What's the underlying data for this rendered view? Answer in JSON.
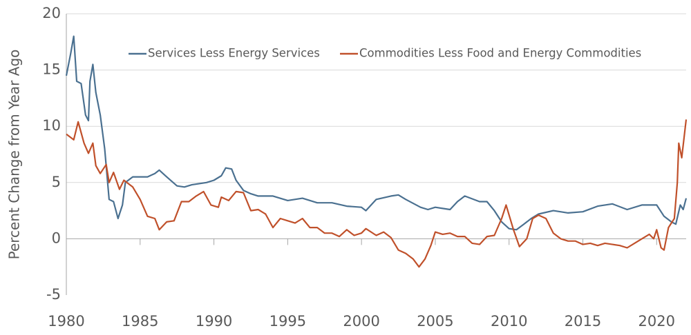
{
  "chart_data": {
    "type": "line",
    "y_label": "Percent Change from Year Ago",
    "xlim": [
      1980,
      2022
    ],
    "ylim": [
      -5,
      20
    ],
    "xticks": [
      1980,
      1985,
      1990,
      1995,
      2000,
      2005,
      2010,
      2015,
      2020
    ],
    "yticks": [
      -5,
      0,
      5,
      10,
      15,
      20
    ],
    "grid": true,
    "legend": "top",
    "series": [
      {
        "name": "Services Less Energy Services",
        "color": "#4a7090",
        "x": [
          1980,
          1980.3,
          1980.5,
          1980.7,
          1981,
          1981.3,
          1981.5,
          1981.6,
          1981.8,
          1982,
          1982.3,
          1982.6,
          1982.9,
          1983.2,
          1983.5,
          1983.8,
          1984,
          1984.5,
          1985,
          1985.5,
          1986,
          1986.3,
          1986.8,
          1987.5,
          1988,
          1988.5,
          1989,
          1989.5,
          1990,
          1990.5,
          1990.8,
          1991.2,
          1991.5,
          1992,
          1992.5,
          1993,
          1994,
          1995,
          1996,
          1997,
          1998,
          1999,
          2000,
          2000.3,
          2001,
          2002,
          2002.5,
          2003,
          2004,
          2004.5,
          2005,
          2006,
          2006.5,
          2007,
          2008,
          2008.5,
          2009,
          2009.5,
          2010,
          2010.5,
          2011,
          2011.5,
          2012,
          2013,
          2014,
          2015,
          2016,
          2017,
          2018,
          2019,
          2020,
          2020.5,
          2021,
          2021.3,
          2021.6,
          2021.8,
          2022
        ],
        "values": [
          14.5,
          16.5,
          18,
          14,
          13.8,
          11,
          10.5,
          14,
          15.5,
          13,
          11,
          8,
          3.5,
          3.3,
          1.8,
          3,
          5,
          5.5,
          5.5,
          5.5,
          5.8,
          6.1,
          5.5,
          4.7,
          4.6,
          4.8,
          4.9,
          5.0,
          5.2,
          5.6,
          6.3,
          6.2,
          5.2,
          4.3,
          4.0,
          3.8,
          3.8,
          3.4,
          3.6,
          3.2,
          3.2,
          2.9,
          2.8,
          2.5,
          3.5,
          3.8,
          3.9,
          3.5,
          2.8,
          2.6,
          2.8,
          2.6,
          3.3,
          3.8,
          3.3,
          3.3,
          2.5,
          1.5,
          0.9,
          0.8,
          1.3,
          1.8,
          2.2,
          2.5,
          2.3,
          2.4,
          2.9,
          3.1,
          2.6,
          3.0,
          3.0,
          2.0,
          1.5,
          1.3,
          3.0,
          2.6,
          3.6
        ]
      },
      {
        "name": "Commodities Less Food and Energy Commodities",
        "color": "#c0502a",
        "x": [
          1980,
          1980.5,
          1980.8,
          1981.2,
          1981.5,
          1981.8,
          1982,
          1982.3,
          1982.7,
          1982.9,
          1983.2,
          1983.6,
          1983.9,
          1984.5,
          1985,
          1985.5,
          1986,
          1986.3,
          1986.8,
          1987.3,
          1987.8,
          1988.3,
          1988.8,
          1989.3,
          1989.8,
          1990.3,
          1990.5,
          1991,
          1991.5,
          1992,
          1992.5,
          1993,
          1993.5,
          1994,
          1994.5,
          1995,
          1995.5,
          1996,
          1996.5,
          1997,
          1997.5,
          1998,
          1998.5,
          1999,
          1999.5,
          2000,
          2000.3,
          2001,
          2001.5,
          2002,
          2002.5,
          2003,
          2003.5,
          2003.9,
          2004.3,
          2004.7,
          2005,
          2005.5,
          2006,
          2006.5,
          2007,
          2007.5,
          2008,
          2008.5,
          2009,
          2009.5,
          2009.8,
          2010.3,
          2010.7,
          2011.2,
          2011.6,
          2012,
          2012.5,
          2013,
          2013.5,
          2014,
          2014.5,
          2015,
          2015.5,
          2016,
          2016.5,
          2017,
          2017.5,
          2018,
          2018.5,
          2019,
          2019.5,
          2019.8,
          2020,
          2020.3,
          2020.5,
          2020.8,
          2021,
          2021.2,
          2021.4,
          2021.5,
          2021.7,
          2022
        ],
        "values": [
          9.3,
          8.8,
          10.4,
          8.5,
          7.6,
          8.5,
          6.5,
          5.8,
          6.6,
          5.0,
          5.9,
          4.4,
          5.2,
          4.6,
          3.5,
          2.0,
          1.8,
          0.8,
          1.5,
          1.6,
          3.3,
          3.3,
          3.8,
          4.2,
          3.0,
          2.8,
          3.7,
          3.4,
          4.2,
          4.1,
          2.5,
          2.6,
          2.2,
          1.0,
          1.8,
          1.6,
          1.4,
          1.8,
          1.0,
          1.0,
          0.5,
          0.5,
          0.2,
          0.8,
          0.3,
          0.5,
          0.9,
          0.3,
          0.6,
          0.1,
          -1.0,
          -1.3,
          -1.8,
          -2.5,
          -1.8,
          -0.6,
          0.6,
          0.4,
          0.5,
          0.2,
          0.2,
          -0.4,
          -0.5,
          0.2,
          0.3,
          1.8,
          3.0,
          0.8,
          -0.7,
          0,
          1.8,
          2.1,
          1.8,
          0.5,
          0,
          -0.2,
          -0.2,
          -0.5,
          -0.4,
          -0.6,
          -0.4,
          -0.5,
          -0.6,
          -0.8,
          -0.4,
          0,
          0.4,
          0.0,
          0.8,
          -0.8,
          -1.0,
          1.0,
          1.4,
          1.8,
          5,
          8.5,
          7.2,
          10.6
        ]
      }
    ]
  }
}
